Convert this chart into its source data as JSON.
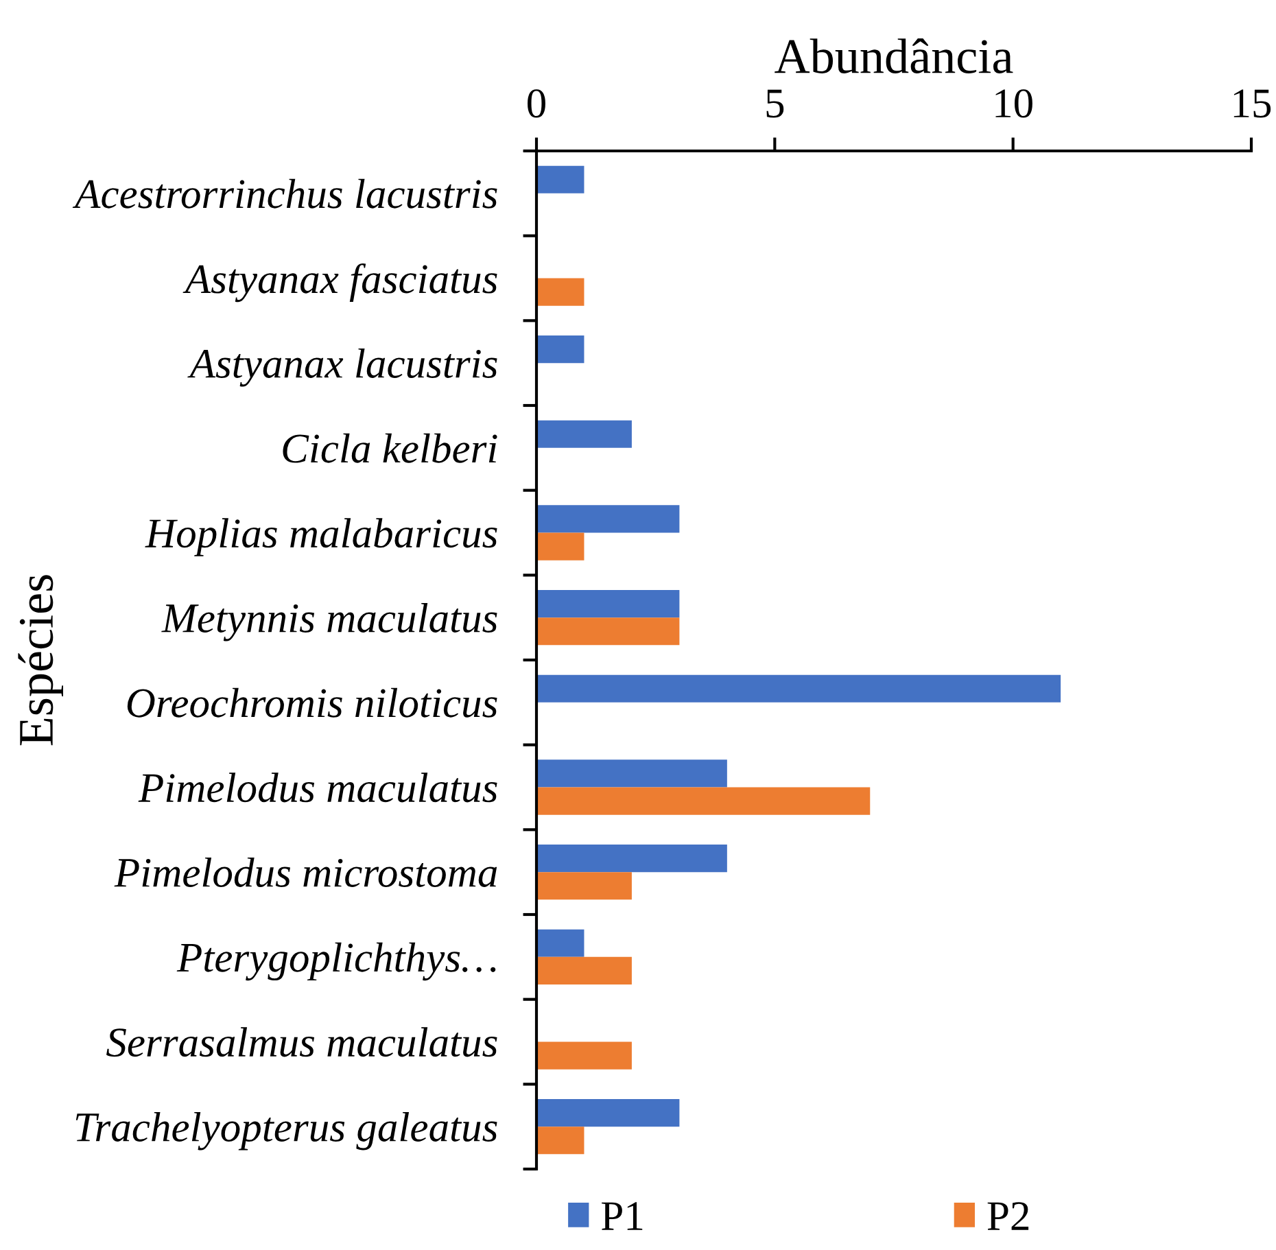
{
  "chart_data": {
    "type": "bar",
    "orientation": "horizontal",
    "xlabel": "Abundância",
    "ylabel": "Espécies",
    "categories": [
      "Acestrorrinchus lacustris",
      "Astyanax fasciatus",
      "Astyanax lacustris",
      "Cicla kelberi",
      "Hoplias malabaricus",
      "Metynnis maculatus",
      "Oreochromis niloticus",
      "Pimelodus maculatus",
      "Pimelodus microstoma",
      "Pterygoplichthys…",
      "Serrasalmus maculatus",
      "Trachelyopterus galeatus"
    ],
    "series": [
      {
        "name": "P1",
        "color": "#4472c4",
        "values": [
          1,
          null,
          1,
          2,
          3,
          3,
          11,
          4,
          4,
          1,
          null,
          3
        ]
      },
      {
        "name": "P2",
        "color": "#ed7d31",
        "values": [
          null,
          1,
          null,
          null,
          1,
          3,
          null,
          7,
          2,
          2,
          2,
          1
        ]
      }
    ],
    "xlim": [
      0,
      15
    ],
    "xticks": [
      0,
      5,
      10,
      15
    ],
    "legend": "bottom"
  }
}
